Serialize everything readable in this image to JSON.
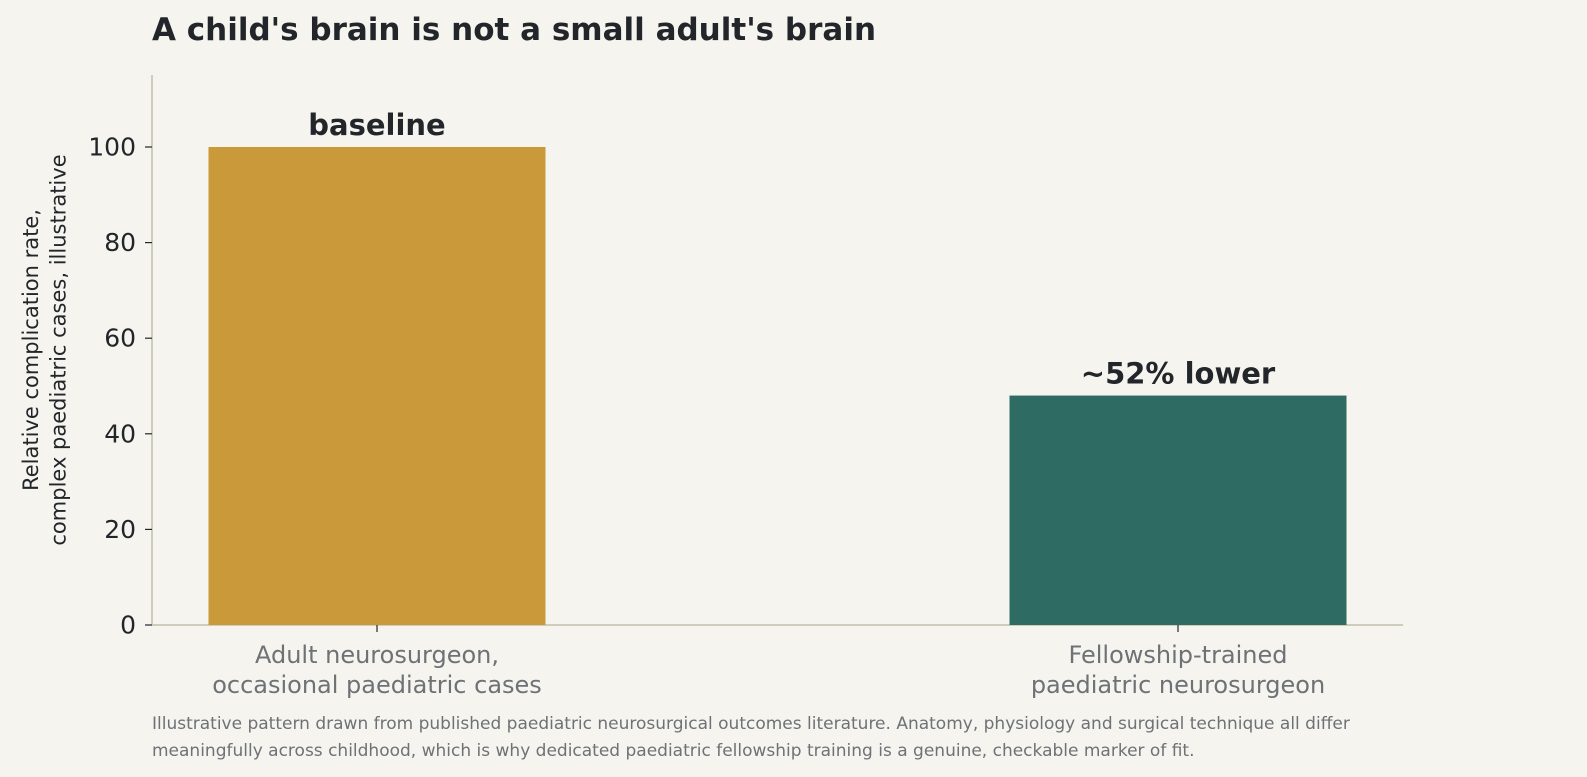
{
  "chart_data": {
    "type": "bar",
    "title": "A child's brain is not a small adult's brain",
    "ylabel_lines": [
      "Relative complication rate,",
      "complex paediatric cases, illustrative"
    ],
    "xlabel": "",
    "ylim": [
      0,
      115
    ],
    "yticks": [
      0,
      20,
      40,
      60,
      80,
      100
    ],
    "grid": false,
    "categories": [
      [
        "Adult neurosurgeon,",
        "occasional paediatric cases"
      ],
      [
        "Fellowship-trained",
        "paediatric neurosurgeon"
      ]
    ],
    "values": [
      100,
      48
    ],
    "bar_labels": [
      "baseline",
      "~52% lower"
    ],
    "colors": [
      "#c9993a",
      "#2e6b62"
    ]
  },
  "caption": {
    "line1": "Illustrative pattern drawn from published paediatric neurosurgical outcomes literature. Anatomy, physiology and surgical technique all differ",
    "line2": "meaningfully across childhood, which is why dedicated paediatric fellowship training is a genuine, checkable marker of fit."
  },
  "style": {
    "axis_color": "#c2bfa9",
    "text_color": "#22262a",
    "muted_text_color": "#6e7276",
    "background": "#f5f4ef"
  }
}
